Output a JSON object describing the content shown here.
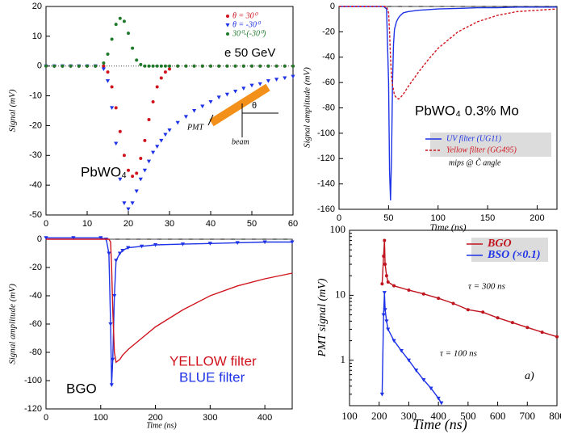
{
  "chart_data": [
    {
      "type": "scatter",
      "ylabel": "Signal (mV)",
      "xlim": [
        0,
        60
      ],
      "xticks": [
        0,
        10,
        20,
        30,
        40,
        50,
        60
      ],
      "ylim": [
        -50,
        20
      ],
      "yticks": [
        -50,
        -40,
        -30,
        -20,
        -10,
        0,
        10,
        20
      ],
      "zero_line": "dotted",
      "annotations": [
        "e 50 GeV",
        "PbWO₄",
        "PMT",
        "θ",
        "beam"
      ],
      "x": [
        0,
        2,
        4,
        6,
        8,
        10,
        12,
        14,
        15,
        16,
        17,
        18,
        19,
        20,
        21,
        22,
        23,
        24,
        25,
        26,
        27,
        28,
        29,
        30,
        32,
        34,
        36,
        38,
        40,
        42,
        44,
        46,
        48,
        50,
        52,
        54,
        56,
        58,
        60
      ],
      "series": [
        {
          "name": "θ = 30⁰",
          "color": "#d0141e",
          "marker": "circle",
          "line": false,
          "values": [
            0,
            0,
            0,
            0,
            0,
            0,
            0,
            0,
            -2,
            -7,
            -14,
            -22,
            -30,
            -35,
            -37,
            -36,
            -31,
            -25,
            -18,
            -12,
            -7,
            -4,
            -2,
            -1,
            0,
            0,
            0,
            0,
            0,
            0,
            0,
            0,
            0,
            0,
            0,
            0,
            0,
            0,
            0
          ]
        },
        {
          "name": "θ = -30⁰",
          "color": "#1e32e6",
          "marker": "triangle",
          "line": false,
          "values": [
            0,
            0,
            0,
            0,
            0,
            0,
            0,
            -1,
            -5,
            -14,
            -26,
            -38,
            -46,
            -48,
            -46,
            -42,
            -38,
            -35,
            -32,
            -29,
            -27,
            -25,
            -23,
            -21.5,
            -19,
            -17,
            -15,
            -13.5,
            -12,
            -10.5,
            -9.5,
            -8.5,
            -7.5,
            -6.5,
            -6,
            -5,
            -4.5,
            -4,
            -3.5
          ]
        },
        {
          "name": "30⁰-(-30⁰)",
          "color": "#1f7a2a",
          "marker": "circle",
          "line": false,
          "values": [
            0,
            0,
            0,
            0,
            0,
            0,
            0,
            1,
            4,
            9,
            14,
            16,
            15,
            11,
            6,
            2,
            0.5,
            0,
            0,
            0,
            0,
            0,
            0,
            0,
            0,
            0,
            0,
            0,
            0,
            0,
            0,
            0,
            0,
            0,
            0,
            0,
            0,
            0,
            0
          ]
        }
      ]
    },
    {
      "type": "line",
      "xlabel": "Time (ns)",
      "ylabel": "Signal amplitude (mV)",
      "xlim": [
        0,
        220
      ],
      "xticks": [
        0,
        50,
        100,
        150,
        200
      ],
      "ylim": [
        -160,
        0
      ],
      "yticks": [
        -160,
        -140,
        -120,
        -100,
        -80,
        -60,
        -40,
        -20,
        0
      ],
      "zero_line": "dashed",
      "annotations": [
        "PbWO₄ 0.3% Mo",
        "mips @ Č angle"
      ],
      "x": [
        0,
        10,
        20,
        30,
        40,
        45,
        48,
        50,
        51,
        52,
        53,
        54,
        55,
        56,
        58,
        60,
        62,
        65,
        70,
        80,
        90,
        100,
        120,
        140,
        160,
        180,
        200,
        220
      ],
      "series": [
        {
          "name": "UV filter (UG11)",
          "color": "#1e32e6",
          "line": true,
          "line_style": "solid",
          "values": [
            0,
            0,
            0,
            0,
            0,
            0,
            -2,
            -60,
            -130,
            -153,
            -120,
            -60,
            -30,
            -18,
            -12,
            -9,
            -7,
            -5,
            -4,
            -3,
            -2.5,
            -2,
            -1.5,
            -1,
            -1,
            -0.5,
            -0.5,
            -0.5
          ]
        },
        {
          "name": "Yellow filter (GG495)",
          "color": "#d0141e",
          "line": true,
          "line_style": "dashed",
          "values": [
            0,
            0,
            0,
            0,
            0,
            0,
            0,
            -5,
            -20,
            -40,
            -55,
            -62,
            -66,
            -70,
            -72,
            -73,
            -72,
            -69,
            -63,
            -52,
            -42,
            -33,
            -20,
            -12,
            -7,
            -4,
            -3,
            -2
          ]
        }
      ]
    },
    {
      "type": "line",
      "xlabel": "Time (ns)",
      "ylabel": "Signal amplitude (mV)",
      "xlim": [
        0,
        450
      ],
      "xticks": [
        0,
        100,
        200,
        300,
        400
      ],
      "ylim": [
        -120,
        0
      ],
      "yticks": [
        -120,
        -100,
        -80,
        -60,
        -40,
        -20,
        0
      ],
      "zero_line": "dashed",
      "annotations": [
        "YELLOW filter",
        "BLUE filter",
        "BGO"
      ],
      "x": [
        0,
        50,
        100,
        110,
        115,
        118,
        120,
        122,
        125,
        128,
        135,
        140,
        150,
        175,
        200,
        250,
        300,
        350,
        400,
        450
      ],
      "series": [
        {
          "color": "#1e32e6",
          "line": true,
          "line_style": "solid",
          "marker": "triangle",
          "values": [
            1,
            1,
            1,
            0,
            -10,
            -60,
            -103,
            -85,
            -40,
            -15,
            -10,
            -8,
            -6,
            -5,
            -4,
            -3.5,
            -3,
            -2.5,
            -2,
            -2
          ]
        },
        {
          "color": "#d0141e",
          "line": true,
          "line_style": "solid",
          "values": [
            0,
            0,
            0,
            0,
            0,
            -2,
            -20,
            -50,
            -80,
            -87,
            -85,
            -82,
            -78,
            -70,
            -62,
            -50,
            -40,
            -33,
            -28,
            -24
          ]
        }
      ]
    },
    {
      "type": "line",
      "xlabel": "Time (ns)",
      "ylabel": "PMT signal (mV)",
      "log_y": true,
      "xlim": [
        100,
        800
      ],
      "xticks": [
        100,
        200,
        300,
        400,
        500,
        600,
        700,
        800
      ],
      "ylim": [
        0.2,
        100
      ],
      "yticks": [
        1,
        10,
        100
      ],
      "annotations": [
        "τ = 300 ns",
        "τ = 100 ns",
        "a)"
      ],
      "series": [
        {
          "name": "BGO",
          "color": "#c0141e",
          "line": true,
          "line_style": "solid",
          "marker": "circle",
          "x": [
            210,
            215,
            218,
            220,
            225,
            230,
            250,
            300,
            350,
            400,
            450,
            500,
            550,
            600,
            650,
            700,
            750,
            800
          ],
          "values": [
            15,
            40,
            70,
            30,
            20,
            16,
            14,
            12,
            10.5,
            9,
            7.5,
            6,
            5.5,
            4.5,
            3.8,
            3.2,
            2.7,
            2.3
          ]
        },
        {
          "name": "BSO (×0.1)",
          "color": "#1e32e6",
          "line": true,
          "line_style": "solid",
          "marker": "triangle",
          "x": [
            210,
            215,
            218,
            220,
            225,
            230,
            250,
            275,
            300,
            325,
            350,
            375,
            400,
            410
          ],
          "values": [
            0.3,
            5,
            11,
            6,
            4,
            3,
            2,
            1.4,
            1,
            0.7,
            0.5,
            0.37,
            0.26,
            0.22
          ]
        }
      ]
    }
  ]
}
